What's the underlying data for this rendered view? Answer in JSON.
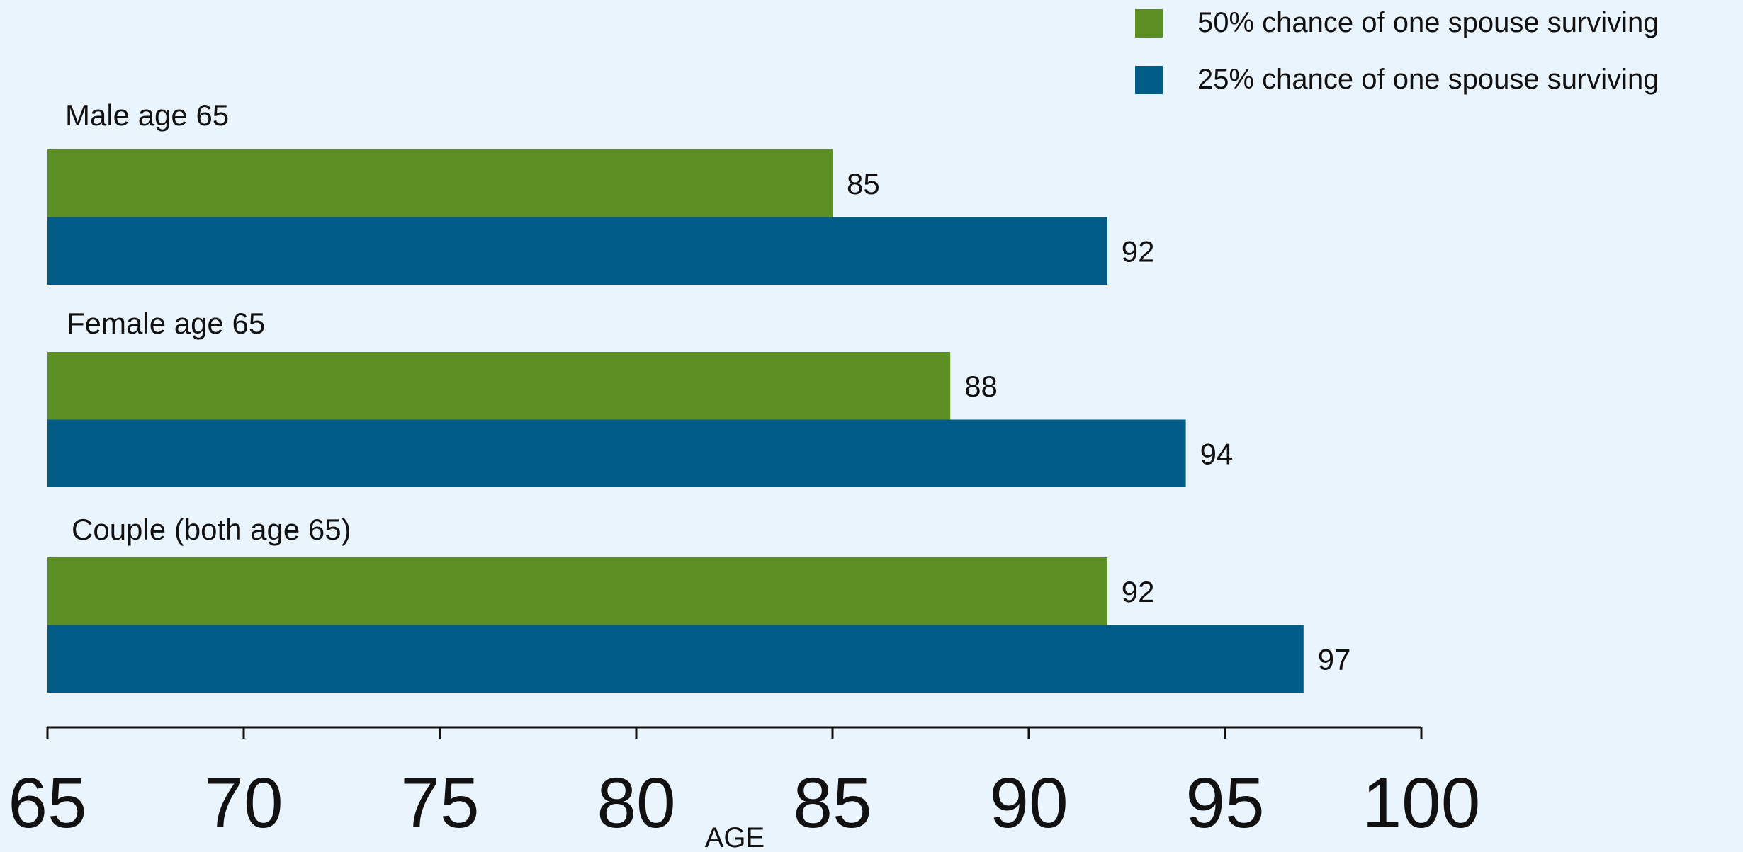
{
  "chart_data": {
    "type": "bar",
    "orientation": "horizontal",
    "categories": [
      "Male age 65",
      "Female age 65",
      "Couple (both age 65)"
    ],
    "series": [
      {
        "name": "50% chance of one spouse surviving",
        "color": "#5C9024",
        "values": [
          85,
          88,
          92
        ]
      },
      {
        "name": "25% chance of one spouse surviving",
        "color": "#005C87",
        "values": [
          92,
          94,
          97
        ]
      }
    ],
    "xlabel": "AGE",
    "ylabel": "",
    "xlim": [
      65,
      100
    ],
    "xticks": [
      65,
      70,
      75,
      80,
      85,
      90,
      95,
      100
    ],
    "grid": false,
    "legend_position": "top-right",
    "data_labels": true
  }
}
